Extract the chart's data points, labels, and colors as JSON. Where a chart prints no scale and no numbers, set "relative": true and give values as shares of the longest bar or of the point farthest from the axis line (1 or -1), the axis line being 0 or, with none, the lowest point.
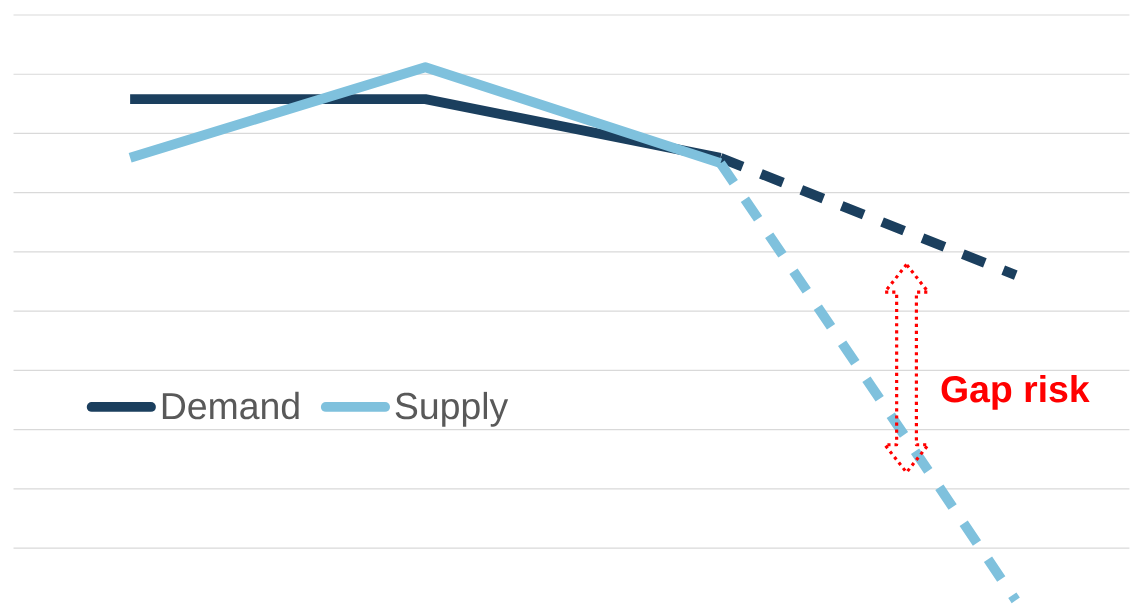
{
  "chart_data": {
    "type": "line",
    "relative": true,
    "categories": [
      null,
      null,
      null,
      null
    ],
    "grid": "y",
    "legend": "left",
    "series": [
      {
        "name": "Demand",
        "color": "#1b3f5e",
        "values": [
          0.94,
          0.94,
          0.83,
          null
        ],
        "line_style": "solid"
      },
      {
        "color": "#1b3f5e",
        "values": [
          null,
          null,
          0.83,
          0.61
        ],
        "line_style": "dashed"
      },
      {
        "name": "Supply",
        "color": "#7fc1dd",
        "values": [
          0.83,
          1,
          0.82,
          null
        ],
        "line_style": "solid"
      },
      {
        "color": "#7fc1dd",
        "values": [
          null,
          null,
          0.82,
          0
        ],
        "line_style": "dashed"
      }
    ],
    "annotations": [
      "Gap risk"
    ]
  }
}
